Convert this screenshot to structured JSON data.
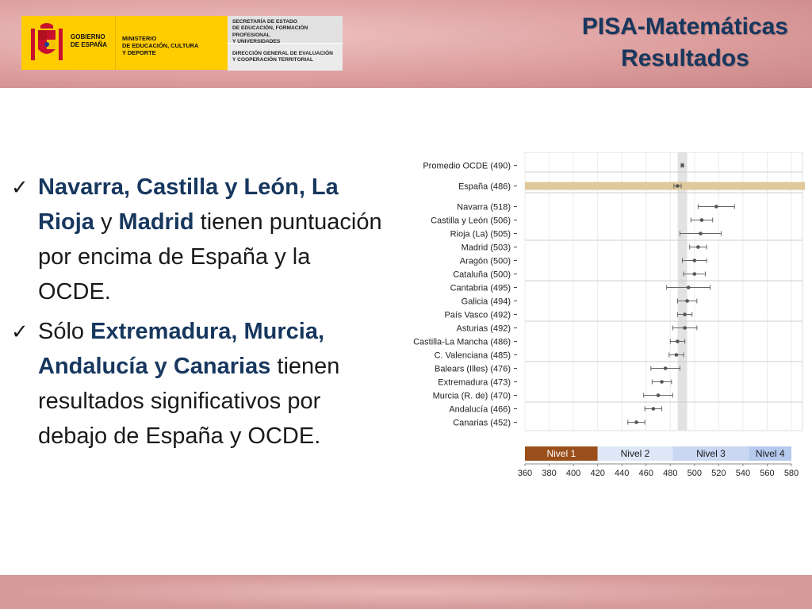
{
  "header": {
    "gobierno": [
      "GOBIERNO",
      "DE ESPAÑA"
    ],
    "ministerio": [
      "MINISTERIO",
      "DE EDUCACIÓN, CULTURA",
      "Y DEPORTE"
    ],
    "secretaria": [
      "SECRETARÍA DE ESTADO",
      "DE EDUCACIÓN, FORMACIÓN PROFESIONAL",
      "Y UNIVERSIDADES"
    ],
    "direccion": [
      "DIRECCIÓN GENERAL DE EVALUACIÓN",
      "Y COOPERACIÓN TERRITORIAL"
    ],
    "title_line1": "PISA-Matemáticas",
    "title_line2": "Resultados"
  },
  "bullets": [
    {
      "check": "✓",
      "parts": [
        {
          "text": "Navarra, Castilla y León, La Rioja",
          "bold": true
        },
        {
          "text": " y ",
          "bold": false
        },
        {
          "text": "Madrid",
          "bold": true
        },
        {
          "text": " tienen puntuación por encima de España y la OCDE.",
          "bold": false
        }
      ]
    },
    {
      "check": "✓",
      "parts": [
        {
          "text": "Sólo ",
          "bold": false
        },
        {
          "text": "Extremadura, Murcia, Andalucía y Canarias",
          "bold": true
        },
        {
          "text": " tienen resultados significativos por debajo de España y OCDE.",
          "bold": false
        }
      ]
    }
  ],
  "colors": {
    "title": "#17375e",
    "highlight_band": "#dfc89a",
    "ref_band": "#e2e2e2",
    "nivel1": "#9a4f1a",
    "nivel2": "#dde7f8",
    "nivel3": "#c9d7f2",
    "nivel4": "#b6c9ee",
    "point": "#555555"
  },
  "chart_data": {
    "type": "scatter",
    "orientation": "horizontal",
    "xlim": [
      360,
      580
    ],
    "xticks": [
      360,
      380,
      400,
      420,
      440,
      460,
      480,
      500,
      520,
      540,
      560,
      580
    ],
    "reference_value": 490,
    "highlight_row": "España (486)",
    "groups": [
      [
        {
          "label": "Promedio OCDE (490)",
          "value": 490,
          "low": 489,
          "high": 491
        }
      ],
      [
        {
          "label": "España (486)",
          "value": 486,
          "low": 483,
          "high": 489
        }
      ],
      [
        {
          "label": "Navarra (518)",
          "value": 518,
          "low": 503,
          "high": 533
        },
        {
          "label": "Castilla y León (506)",
          "value": 506,
          "low": 497,
          "high": 515
        },
        {
          "label": "Rioja (La) (505)",
          "value": 505,
          "low": 488,
          "high": 522
        }
      ],
      [
        {
          "label": "Madrid (503)",
          "value": 503,
          "low": 496,
          "high": 510
        },
        {
          "label": "Aragón (500)",
          "value": 500,
          "low": 490,
          "high": 510
        },
        {
          "label": "Cataluña (500)",
          "value": 500,
          "low": 491,
          "high": 509
        }
      ],
      [
        {
          "label": "Cantabria (495)",
          "value": 495,
          "low": 477,
          "high": 513
        },
        {
          "label": "Galicia (494)",
          "value": 494,
          "low": 486,
          "high": 502
        },
        {
          "label": "País Vasco (492)",
          "value": 492,
          "low": 486,
          "high": 498
        }
      ],
      [
        {
          "label": "Asturias (492)",
          "value": 492,
          "low": 482,
          "high": 502
        },
        {
          "label": "Castilla-La Mancha (486)",
          "value": 486,
          "low": 480,
          "high": 492
        },
        {
          "label": "C. Valenciana (485)",
          "value": 485,
          "low": 479,
          "high": 491
        }
      ],
      [
        {
          "label": "Balears (Illes) (476)",
          "value": 476,
          "low": 464,
          "high": 488
        },
        {
          "label": "Extremadura (473)",
          "value": 473,
          "low": 465,
          "high": 481
        },
        {
          "label": "Murcia (R. de) (470)",
          "value": 470,
          "low": 458,
          "high": 482
        }
      ],
      [
        {
          "label": "Andalucía (466)",
          "value": 466,
          "low": 459,
          "high": 473
        },
        {
          "label": "Canarias (452)",
          "value": 452,
          "low": 445,
          "high": 459
        }
      ]
    ],
    "levels": [
      {
        "name": "Nivel 1",
        "from": 360,
        "to": 420
      },
      {
        "name": "Nivel 2",
        "from": 420,
        "to": 482
      },
      {
        "name": "Nivel 3",
        "from": 482,
        "to": 545
      },
      {
        "name": "Nivel 4",
        "from": 545,
        "to": 580
      }
    ]
  }
}
